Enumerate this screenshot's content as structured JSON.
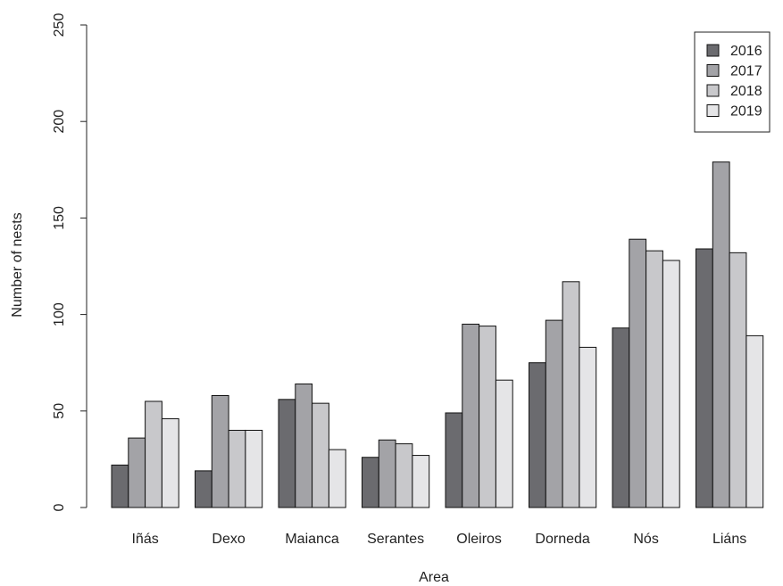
{
  "chart_data": {
    "type": "bar",
    "title": "",
    "xlabel": "Area",
    "ylabel": "Number of nests",
    "ylim": [
      0,
      250
    ],
    "yticks": [
      0,
      50,
      100,
      150,
      200,
      250
    ],
    "categories": [
      "Iñás",
      "Dexo",
      "Maianca",
      "Serantes",
      "Oleiros",
      "Dorneda",
      "Nós",
      "Liáns"
    ],
    "series": [
      {
        "name": "2016",
        "color": "#6b6b6f",
        "values": [
          22,
          19,
          56,
          26,
          49,
          75,
          93,
          134
        ]
      },
      {
        "name": "2017",
        "color": "#a3a3a7",
        "values": [
          36,
          58,
          64,
          35,
          95,
          97,
          139,
          179
        ]
      },
      {
        "name": "2018",
        "color": "#c8c8cb",
        "values": [
          55,
          40,
          54,
          33,
          94,
          117,
          133,
          132
        ]
      },
      {
        "name": "2019",
        "color": "#e5e5e7",
        "values": [
          46,
          40,
          30,
          27,
          66,
          83,
          128,
          89
        ]
      }
    ],
    "grid": false,
    "legend_position": "top-right"
  }
}
